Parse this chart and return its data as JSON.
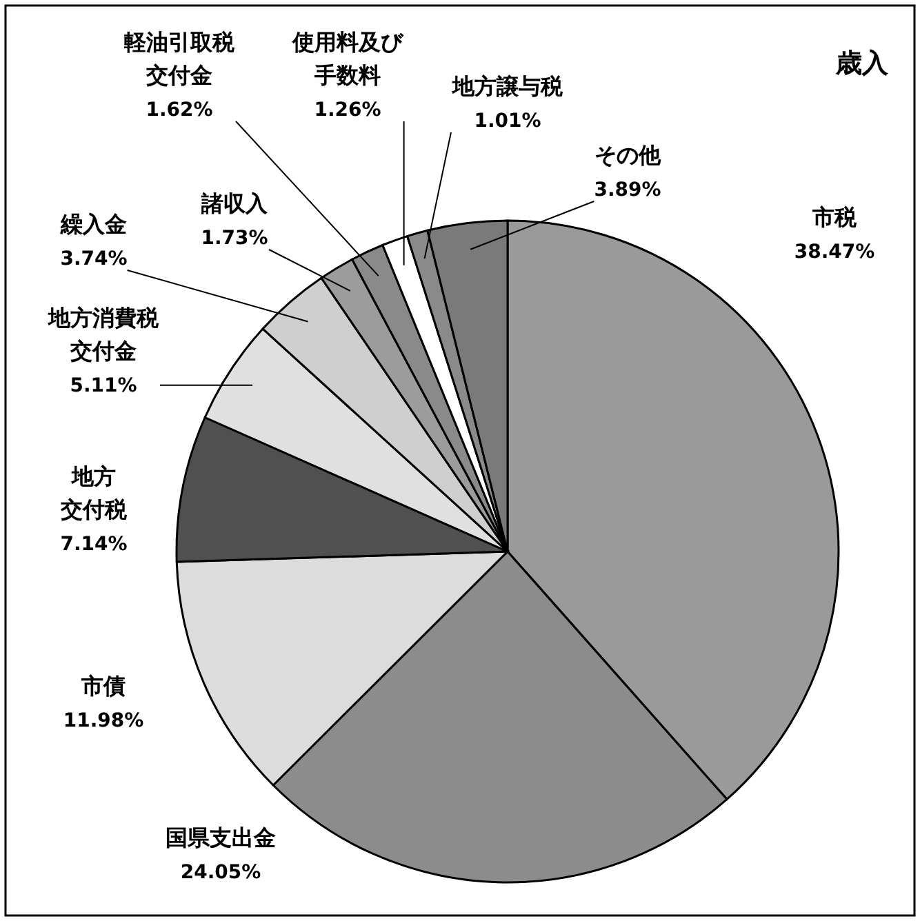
{
  "chart_data": {
    "type": "pie",
    "title": "歳入",
    "categories": [
      "市税",
      "国県支出金",
      "市債",
      "地方交付税",
      "地方消費税交付金",
      "繰入金",
      "諸収入",
      "軽油引取税交付金",
      "使用料及び手数料",
      "地方譲与税",
      "その他"
    ],
    "values": [
      38.47,
      24.05,
      11.98,
      7.14,
      5.11,
      3.74,
      1.73,
      1.62,
      1.26,
      1.01,
      3.89
    ],
    "colors": [
      "#9a9a9a",
      "#8c8c8c",
      "#dcdcdc",
      "#505050",
      "#e0e0e0",
      "#cfcfcf",
      "#9c9c9c",
      "#8a8a8a",
      "#ffffff",
      "#8a8a8a",
      "#7a7a7a"
    ],
    "value_labels": [
      "38.47%",
      "24.05%",
      "11.98%",
      "7.14%",
      "5.11%",
      "3.74%",
      "1.73%",
      "1.62%",
      "1.26%",
      "1.01%",
      "3.89%"
    ]
  }
}
